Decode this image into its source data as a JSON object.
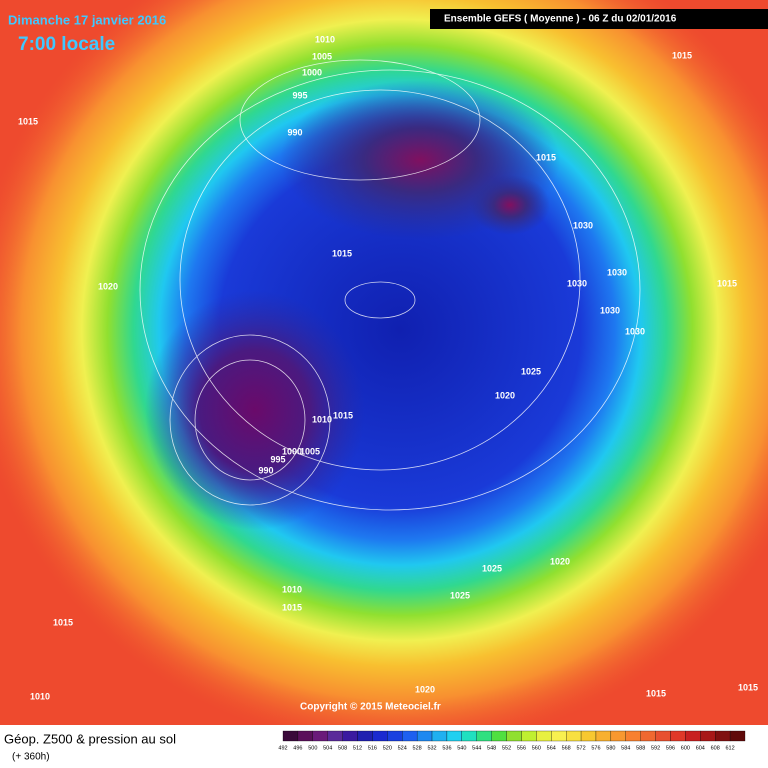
{
  "header": {
    "date": "Dimanche 17 janvier 2016",
    "time": "7:00 locale",
    "run": "Ensemble GEFS  ( Moyenne )  -  06 Z du 02/01/2016"
  },
  "footer": {
    "copyright": "Copyright © 2015 Meteociel.fr",
    "field": "Géop. Z500 & pression au sol",
    "lead": "(+ 360h)"
  },
  "isobar_labels": [
    "1010",
    "1005",
    "1000",
    "995",
    "990",
    "1015",
    "1015",
    "1015",
    "1015",
    "1030",
    "1030",
    "1030",
    "1030",
    "1030",
    "1015",
    "1020",
    "1025",
    "1020",
    "1015",
    "1010",
    "1005",
    "1000",
    "995",
    "990",
    "1025",
    "1020",
    "1025",
    "1010",
    "1015",
    "1015",
    "1010",
    "1020",
    "1015",
    "1015"
  ],
  "colorbar": {
    "labels": [
      "492",
      "496",
      "500",
      "504",
      "508",
      "512",
      "516",
      "520",
      "524",
      "528",
      "532",
      "536",
      "540",
      "544",
      "548",
      "552",
      "556",
      "560",
      "564",
      "568",
      "572",
      "576",
      "580",
      "584",
      "588",
      "592",
      "596",
      "600",
      "604",
      "608",
      "612"
    ],
    "colors": [
      "#3a0a3a",
      "#5a105a",
      "#6a1a7a",
      "#5a2a9a",
      "#3a1aa0",
      "#2020b0",
      "#1a2ad0",
      "#1a40e0",
      "#1e60f0",
      "#1e88f0",
      "#20b0f0",
      "#20d0f0",
      "#20e0c0",
      "#30e080",
      "#50e040",
      "#90e030",
      "#c0f030",
      "#e8f040",
      "#f8f050",
      "#f8e040",
      "#f8c830",
      "#f8b030",
      "#f89830",
      "#f88030",
      "#f06830",
      "#e85030",
      "#e03828",
      "#c82020",
      "#a81818",
      "#801010",
      "#600a0a"
    ]
  }
}
